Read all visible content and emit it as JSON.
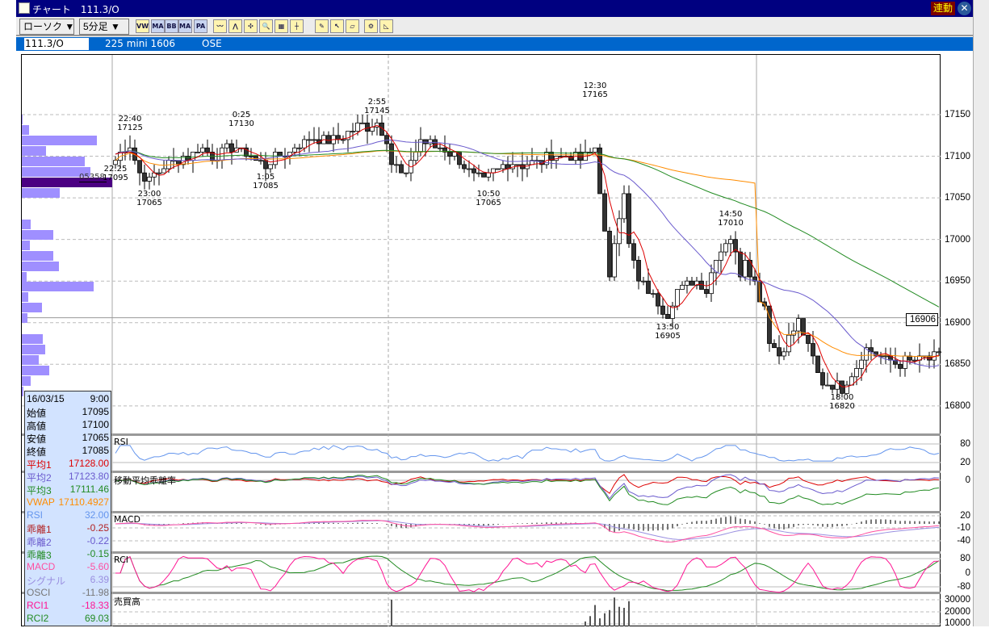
{
  "window": {
    "title": "チャート　111.3/O",
    "sync_label": "連動",
    "close_icon": "close-icon"
  },
  "toolbar": {
    "chart_type": "ローソク ▼",
    "interval": "5分足 ▼",
    "buttons": [
      {
        "name": "vwap",
        "label": "VW"
      },
      {
        "name": "ma",
        "label": "MA"
      },
      {
        "name": "bb",
        "label": "BB"
      },
      {
        "name": "mae",
        "label": "MAE"
      },
      {
        "name": "pa",
        "label": "PA"
      },
      {
        "name": "line-chart",
        "label": "〰"
      },
      {
        "name": "trend",
        "label": "⋀"
      },
      {
        "name": "cross",
        "label": "✣"
      },
      {
        "name": "zoom",
        "label": "🔍"
      },
      {
        "name": "calc",
        "label": "▦"
      },
      {
        "name": "cursor-line",
        "label": "┼"
      },
      {
        "name": "pencil",
        "label": "✎"
      },
      {
        "name": "pointer",
        "label": "↖"
      },
      {
        "name": "eraser",
        "label": "▱"
      },
      {
        "name": "settings",
        "label": "⚙"
      },
      {
        "name": "fibo",
        "label": "◺"
      }
    ]
  },
  "tabbar": {
    "symbol": "111.3/O",
    "contract": "225 mini 1606",
    "exchange": "OSE"
  },
  "price_axis": [
    "17150",
    "17100",
    "17050",
    "17000",
    "16950",
    "16900",
    "16850",
    "16800"
  ],
  "current_price": "16906",
  "profile_label": "05358",
  "panels": {
    "rsi": "RSI",
    "dev": "移動平均乖離率",
    "macd": "MACD",
    "rci": "RCI",
    "vol": "売買高"
  },
  "sub_axes": {
    "rsi": [
      "80",
      "20"
    ],
    "dev": [
      "0"
    ],
    "macd": [
      "20",
      "-10",
      "-40"
    ],
    "rci": [
      "80",
      "0",
      "-80"
    ],
    "vol": [
      "30000",
      "20000",
      "10000"
    ]
  },
  "info": {
    "date": "16/03/15",
    "time": "9:00",
    "rows": [
      {
        "label": "始値",
        "value": "17095",
        "color": "#000000"
      },
      {
        "label": "高値",
        "value": "17100",
        "color": "#000000"
      },
      {
        "label": "安値",
        "value": "17065",
        "color": "#000000"
      },
      {
        "label": "終値",
        "value": "17085",
        "color": "#000000"
      },
      {
        "label": "平均1",
        "value": "17128.00",
        "color": "#dd0000"
      },
      {
        "label": "平均2",
        "value": "17123.80",
        "color": "#6a5acd"
      },
      {
        "label": "平均3",
        "value": "17111.46",
        "color": "#228b22"
      },
      {
        "label": "VWAP",
        "value": "17110.4927",
        "color": "#ff8c00"
      },
      {
        "label": "RSI",
        "value": "32.00",
        "color": "#6495ed"
      },
      {
        "label": "乖離1",
        "value": "-0.25",
        "color": "#b22222"
      },
      {
        "label": "乖離2",
        "value": "-0.22",
        "color": "#6a5acd"
      },
      {
        "label": "乖離3",
        "value": "-0.15",
        "color": "#228b22"
      },
      {
        "label": "MACD",
        "value": "-5.60",
        "color": "#ff4fa0"
      },
      {
        "label": "シグナル",
        "value": "6.39",
        "color": "#9a8fe0"
      },
      {
        "label": "OSCI",
        "value": "-11.98",
        "color": "#777777"
      },
      {
        "label": "RCI1",
        "value": "-18.33",
        "color": "#ff1493"
      },
      {
        "label": "RCI2",
        "value": "69.03",
        "color": "#228b22"
      }
    ]
  },
  "chart_data": {
    "type": "candlestick",
    "interval": "5分足",
    "ylim": [
      16780,
      17190
    ],
    "price_path": [
      [
        0,
        17095
      ],
      [
        3,
        17115
      ],
      [
        5,
        17080
      ],
      [
        7,
        17070
      ],
      [
        10,
        17090
      ],
      [
        15,
        17100
      ],
      [
        17,
        17110
      ],
      [
        20,
        17100
      ],
      [
        25,
        17110
      ],
      [
        26,
        17105
      ],
      [
        31,
        17090
      ],
      [
        34,
        17100
      ],
      [
        40,
        17120
      ],
      [
        46,
        17120
      ],
      [
        50,
        17135
      ],
      [
        54,
        17140
      ],
      [
        56,
        17120
      ],
      [
        57,
        17090
      ],
      [
        60,
        17075
      ],
      [
        61,
        17095
      ],
      [
        63,
        17120
      ],
      [
        67,
        17110
      ],
      [
        70,
        17100
      ],
      [
        73,
        17080
      ],
      [
        76,
        17070
      ],
      [
        80,
        17090
      ],
      [
        86,
        17090
      ],
      [
        90,
        17100
      ],
      [
        93,
        17100
      ],
      [
        96,
        17095
      ],
      [
        99,
        17110
      ],
      [
        100,
        17060
      ],
      [
        102,
        16950
      ],
      [
        103,
        17000
      ],
      [
        105,
        17060
      ],
      [
        106,
        16990
      ],
      [
        108,
        16950
      ],
      [
        111,
        16930
      ],
      [
        114,
        16910
      ],
      [
        116,
        16940
      ],
      [
        120,
        16950
      ],
      [
        122,
        16940
      ],
      [
        124,
        16980
      ],
      [
        127,
        17005
      ],
      [
        129,
        16960
      ],
      [
        130,
        16980
      ],
      [
        133,
        16930
      ],
      [
        134,
        16920
      ],
      [
        135,
        16880
      ],
      [
        137,
        16860
      ],
      [
        139,
        16880
      ],
      [
        141,
        16900
      ],
      [
        145,
        16840
      ],
      [
        146,
        16830
      ],
      [
        150,
        16820
      ],
      [
        153,
        16850
      ],
      [
        155,
        16870
      ],
      [
        158,
        16860
      ],
      [
        161,
        16850
      ],
      [
        170,
        16860
      ]
    ],
    "annotations": [
      {
        "time": "22:40",
        "price": "17125",
        "i": 3,
        "pos": "above"
      },
      {
        "time": "22:25",
        "price": "17095",
        "i": 0,
        "pos": "below"
      },
      {
        "time": "23:00",
        "price": "17065",
        "i": 7,
        "pos": "below"
      },
      {
        "time": "0:25",
        "price": "17130",
        "i": 26,
        "pos": "above"
      },
      {
        "time": "1:05",
        "price": "17085",
        "i": 31,
        "pos": "below"
      },
      {
        "time": "2:55",
        "price": "17145",
        "i": 54,
        "pos": "above"
      },
      {
        "time": "10:50",
        "price": "17065",
        "i": 77,
        "pos": "below"
      },
      {
        "time": "12:30",
        "price": "17165",
        "i": 99,
        "pos": "above"
      },
      {
        "time": "13:50",
        "price": "16905",
        "i": 114,
        "pos": "below"
      },
      {
        "time": "14:50",
        "price": "17010",
        "i": 127,
        "pos": "above"
      },
      {
        "time": "18:00",
        "price": "16820",
        "i": 150,
        "pos": "below"
      }
    ],
    "session_breaks": [
      57,
      133
    ],
    "colors": {
      "ma1": "#dd0000",
      "ma2": "#6a5acd",
      "ma3": "#228b22",
      "vwap": "#ff8c00",
      "rsi": "#6495ed",
      "macd": "#ff4fa0",
      "signal": "#9a8fe0",
      "rci1": "#ff1493",
      "rci2": "#228b22",
      "profile": "#9f8fff",
      "profile_peak": "#4b0082"
    }
  }
}
